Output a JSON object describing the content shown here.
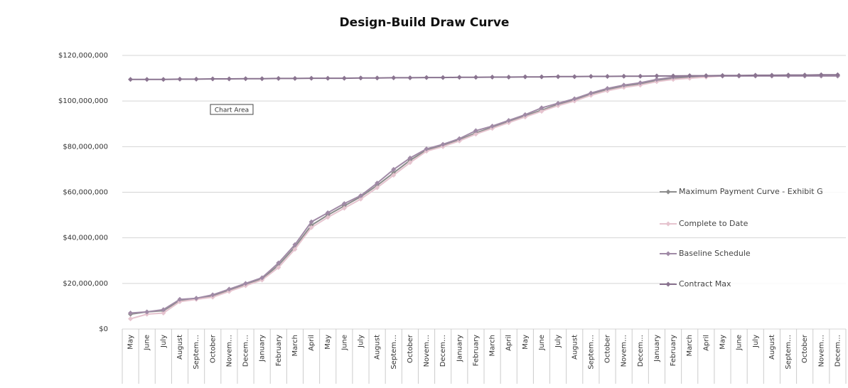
{
  "chart_data": {
    "type": "line",
    "title": "Design-Build Draw Curve",
    "annotation": "Chart Area",
    "categories": [
      "May",
      "June",
      "July",
      "August",
      "Septem…",
      "October",
      "Novem…",
      "Decem…",
      "January",
      "February",
      "March",
      "April",
      "May",
      "June",
      "July",
      "August",
      "Septem…",
      "October",
      "Novem…",
      "Decem…",
      "January",
      "February",
      "March",
      "April",
      "May",
      "June",
      "July",
      "August",
      "Septem…",
      "October",
      "Novem…",
      "Decem…",
      "January",
      "February",
      "March",
      "April",
      "May",
      "June",
      "July",
      "August",
      "Septem…",
      "October",
      "Novem…",
      "Decem…"
    ],
    "ylim": [
      0,
      120000000
    ],
    "yticks": [
      {
        "value": 0,
        "label": "$0"
      },
      {
        "value": 20000000,
        "label": "$20,000,000"
      },
      {
        "value": 40000000,
        "label": "$40,000,000"
      },
      {
        "value": 60000000,
        "label": "$60,000,000"
      },
      {
        "value": 80000000,
        "label": "$80,000,000"
      },
      {
        "value": 100000000,
        "label": "$100,000,000"
      },
      {
        "value": 120000000,
        "label": "$120,000,000"
      }
    ],
    "grid": true,
    "legend": "right",
    "series": [
      {
        "name": "Maximum Payment Curve - Exhibit G",
        "color": "#8c8c8c",
        "values": [
          6500000,
          7500000,
          8000000,
          12500000,
          13500000,
          14500000,
          17000000,
          19500000,
          22000000,
          28000000,
          36000000,
          45500000,
          50000000,
          54000000,
          58000000,
          63000000,
          68500000,
          74000000,
          78500000,
          80500000,
          83000000,
          86000000,
          88500000,
          91000000,
          93500000,
          96000000,
          98500000,
          100500000,
          103000000,
          105000000,
          106500000,
          107500000,
          109000000,
          110000000,
          110500000,
          111000000,
          111000000,
          111000000,
          111000000,
          111000000,
          111000000,
          111000000,
          111000000,
          111000000
        ]
      },
      {
        "name": "Complete to Date",
        "color": "#e6c4cf",
        "values": [
          4500000,
          6500000,
          7000000,
          12000000,
          13000000,
          14000000,
          16500000,
          19000000,
          21500000,
          27000000,
          35000000,
          44500000,
          49000000,
          53000000,
          57000000,
          62000000,
          67500000,
          73000000,
          78000000,
          80000000,
          82500000,
          85500000,
          88000000,
          90500000,
          93000000,
          95500000,
          98000000,
          100000000,
          102500000,
          104500000,
          106000000,
          107000000,
          108500000,
          109500000,
          110000000,
          110500000,
          111000000,
          111000000,
          111000000,
          111000000,
          111000000,
          111000000,
          111000000,
          111000000
        ]
      },
      {
        "name": "Baseline Schedule",
        "color": "#a08aa6",
        "values": [
          7000000,
          7500000,
          8500000,
          13000000,
          13500000,
          15000000,
          17500000,
          20000000,
          22500000,
          29000000,
          37000000,
          47000000,
          51000000,
          55000000,
          58500000,
          64000000,
          70000000,
          75000000,
          79000000,
          81000000,
          83500000,
          87000000,
          89000000,
          91500000,
          94000000,
          97000000,
          99000000,
          101000000,
          103500000,
          105500000,
          107000000,
          108000000,
          109500000,
          110500000,
          111000000,
          111000000,
          111000000,
          111000000,
          111000000,
          111000000,
          111000000,
          111000000,
          111000000,
          111000000
        ]
      },
      {
        "name": "Contract Max",
        "color": "#8a7490",
        "values": [
          109500000,
          109500000,
          109500000,
          109600000,
          109600000,
          109700000,
          109700000,
          109800000,
          109800000,
          109900000,
          109900000,
          110000000,
          110000000,
          110000000,
          110100000,
          110100000,
          110200000,
          110200000,
          110300000,
          110300000,
          110400000,
          110400000,
          110500000,
          110500000,
          110600000,
          110600000,
          110700000,
          110700000,
          110800000,
          110800000,
          110900000,
          110900000,
          111000000,
          111000000,
          111100000,
          111100000,
          111200000,
          111200000,
          111300000,
          111300000,
          111400000,
          111400000,
          111500000,
          111500000
        ]
      }
    ]
  }
}
